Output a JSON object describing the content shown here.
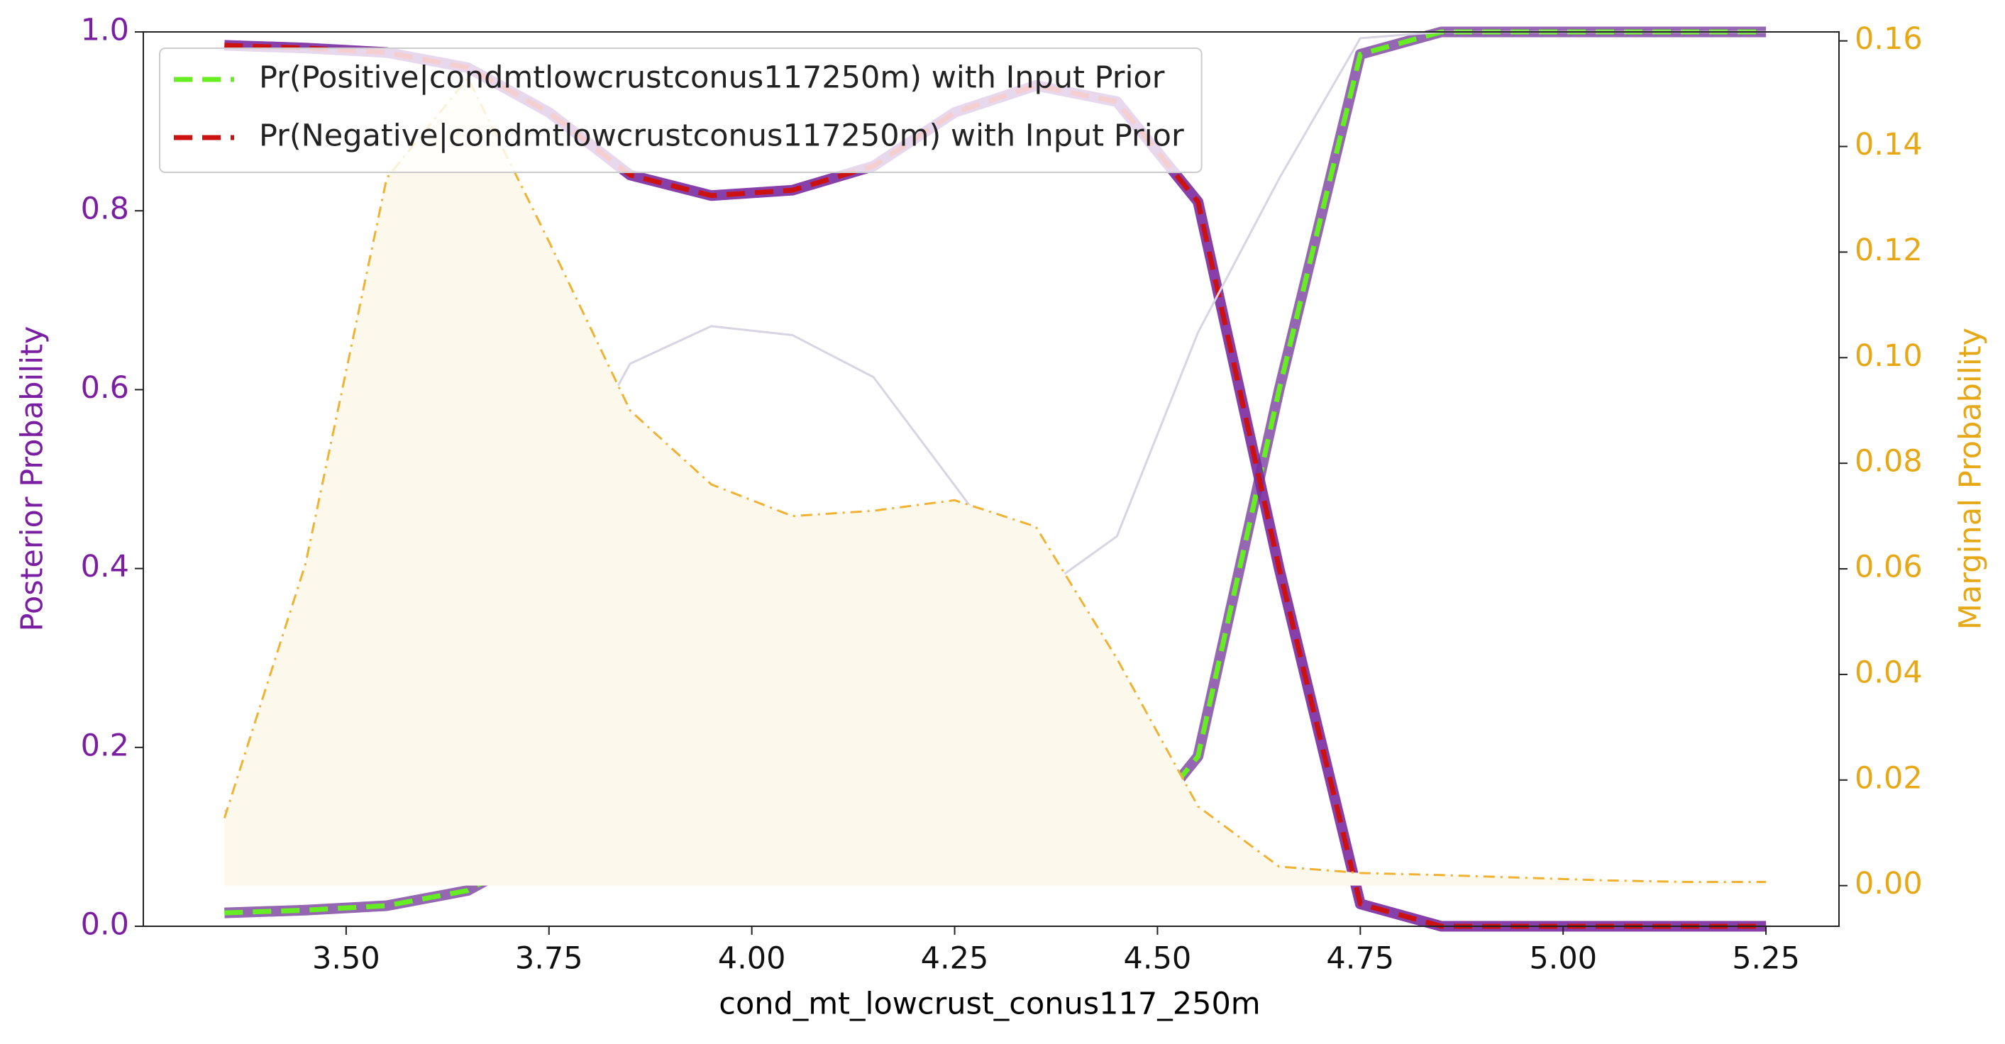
{
  "chart_data": {
    "type": "line",
    "x_label": "cond_mt_lowcrust_conus117_250m",
    "y_label": "Posterior Probability",
    "y2_label": "Marginal Probability",
    "x": [
      3.35,
      3.45,
      3.55,
      3.65,
      3.75,
      3.85,
      3.95,
      4.05,
      4.15,
      4.25,
      4.35,
      4.45,
      4.55,
      4.65,
      4.75,
      4.85,
      4.95,
      5.05,
      5.15,
      5.25
    ],
    "series": [
      {
        "name": "Pr(Positive|condmtlowcrustconus117250m) with Input Prior",
        "color": "#66ee22",
        "outline_color": "#8a55a8",
        "style": "dashed",
        "values": [
          0.015,
          0.018,
          0.023,
          0.04,
          0.09,
          0.16,
          0.183,
          0.177,
          0.15,
          0.09,
          0.06,
          0.078,
          0.19,
          0.6,
          0.975,
          1.0,
          1.0,
          1.0,
          1.0,
          1.0
        ]
      },
      {
        "name": "Pr(Negative|condmtlowcrustconus117250m) with Input Prior",
        "color": "#cc1111",
        "outline_color": "#7a2aa0",
        "style": "dashed",
        "values": [
          0.985,
          0.982,
          0.977,
          0.96,
          0.91,
          0.84,
          0.817,
          0.823,
          0.85,
          0.91,
          0.94,
          0.922,
          0.81,
          0.4,
          0.025,
          0.0,
          0.0,
          0.0,
          0.0,
          0.0
        ]
      },
      {
        "color": "#d8d4e4",
        "style": "solid",
        "values": [
          0.129,
          0.147,
          0.186,
          0.286,
          0.464,
          0.629,
          0.671,
          0.661,
          0.614,
          0.493,
          0.371,
          0.436,
          0.664,
          0.836,
          0.993,
          1.0,
          1.0,
          1.0,
          1.0,
          1.0
        ]
      },
      {
        "color": "#f0b232",
        "style": "dashdot",
        "axis": "y2",
        "fill": "#fdf8ec",
        "values": [
          0.0128,
          0.061,
          0.134,
          0.153,
          0.122,
          0.09,
          0.076,
          0.07,
          0.071,
          0.073,
          0.068,
          0.043,
          0.015,
          0.0036,
          0.0024,
          0.002,
          0.0015,
          0.001,
          0.0007,
          0.0007
        ]
      }
    ],
    "xlim": [
      3.25,
      5.34
    ],
    "xticks": [
      {
        "value": 3.5,
        "label": "3.50"
      },
      {
        "value": 3.75,
        "label": "3.75"
      },
      {
        "value": 4.0,
        "label": "4.00"
      },
      {
        "value": 4.25,
        "label": "4.25"
      },
      {
        "value": 4.5,
        "label": "4.50"
      },
      {
        "value": 4.75,
        "label": "4.75"
      },
      {
        "value": 5.0,
        "label": "5.00"
      },
      {
        "value": 5.25,
        "label": "5.25"
      }
    ],
    "ylim": [
      0,
      1
    ],
    "yticks": [
      {
        "value": 0,
        "label": "0.0"
      },
      {
        "value": 0.2,
        "label": "0.2"
      },
      {
        "value": 0.4,
        "label": "0.4"
      },
      {
        "value": 0.6,
        "label": "0.6"
      },
      {
        "value": 0.8,
        "label": "0.8"
      },
      {
        "value": 1,
        "label": "1.0"
      }
    ],
    "y2lim": [
      -0.0077,
      0.1617
    ],
    "y2ticks": [
      {
        "value": 0,
        "label": "0.00"
      },
      {
        "value": 0.02,
        "label": "0.02"
      },
      {
        "value": 0.04,
        "label": "0.04"
      },
      {
        "value": 0.06,
        "label": "0.06"
      },
      {
        "value": 0.08,
        "label": "0.08"
      },
      {
        "value": 0.1,
        "label": "0.10"
      },
      {
        "value": 0.12,
        "label": "0.12"
      },
      {
        "value": 0.14,
        "label": "0.14"
      },
      {
        "value": 0.16,
        "label": "0.16"
      }
    ],
    "y_color": "#7b1fa2",
    "y2_color": "#e6a817",
    "legend": "upper left"
  }
}
